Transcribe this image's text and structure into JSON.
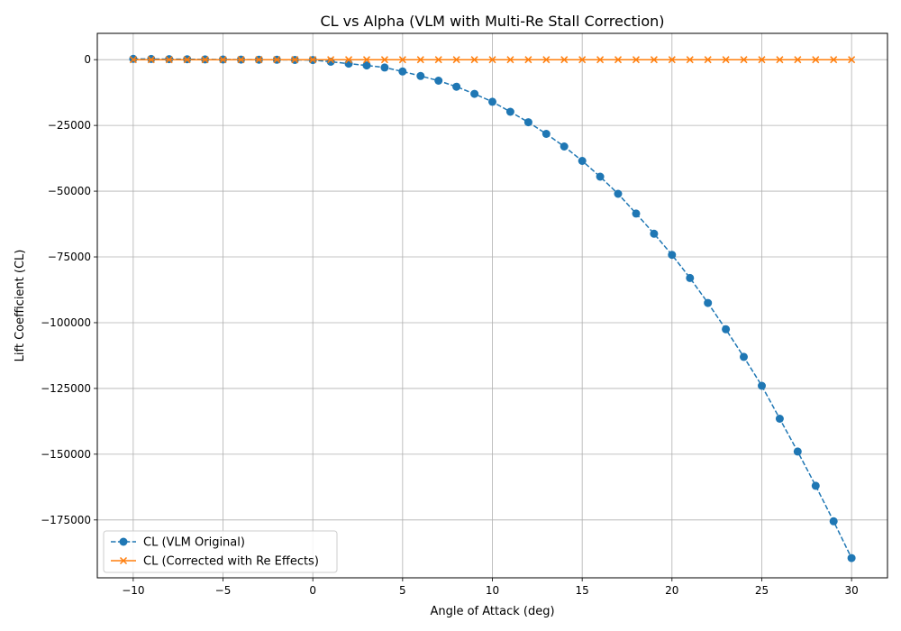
{
  "chart_data": {
    "type": "line",
    "title": "CL vs Alpha (VLM with Multi-Re Stall Correction)",
    "xlabel": "Angle of Attack (deg)",
    "ylabel": "Lift Coefficient (CL)",
    "xlim": [
      -12,
      32
    ],
    "ylim": [
      -197000,
      10000
    ],
    "xticks": [
      -10,
      -5,
      0,
      5,
      10,
      15,
      20,
      25,
      30
    ],
    "xtick_labels": [
      "−10",
      "−5",
      "0",
      "5",
      "10",
      "15",
      "20",
      "25",
      "30"
    ],
    "yticks": [
      0,
      -25000,
      -50000,
      -75000,
      -100000,
      -125000,
      -150000,
      -175000
    ],
    "ytick_labels": [
      "0",
      "−25000",
      "−50000",
      "−75000",
      "−100000",
      "−125000",
      "−150000",
      "−175000"
    ],
    "grid": true,
    "legend_position": "lower-left",
    "x": [
      -10,
      -9,
      -8,
      -7,
      -6,
      -5,
      -4,
      -3,
      -2,
      -1,
      0,
      1,
      2,
      3,
      4,
      5,
      6,
      7,
      8,
      9,
      10,
      11,
      12,
      13,
      14,
      15,
      16,
      17,
      18,
      19,
      20,
      21,
      22,
      23,
      24,
      25,
      26,
      27,
      28,
      29,
      30
    ],
    "series": [
      {
        "name": "CL (VLM Original)",
        "color": "#1f77b4",
        "linestyle": "dashed",
        "marker": "circle",
        "values": [
          300,
          250,
          200,
          150,
          100,
          60,
          30,
          0,
          -50,
          -100,
          -150,
          -800,
          -1500,
          -2200,
          -3000,
          -4500,
          -6200,
          -8000,
          -10300,
          -13000,
          -16000,
          -19800,
          -23800,
          -28200,
          -33000,
          -38500,
          -44500,
          -51000,
          -58500,
          -66200,
          -74200,
          -83000,
          -92500,
          -102500,
          -113000,
          -124000,
          -136500,
          -149000,
          -162000,
          -175500,
          -189500
        ]
      },
      {
        "name": "CL (Corrected with Re Effects)",
        "color": "#ff7f0e",
        "linestyle": "solid",
        "marker": "x",
        "values": [
          0,
          0,
          0,
          0,
          0,
          0,
          0,
          0,
          0,
          0,
          0,
          0,
          0,
          0,
          0,
          0,
          0,
          0,
          0,
          0,
          0,
          0,
          0,
          0,
          0,
          0,
          0,
          0,
          0,
          0,
          0,
          0,
          0,
          0,
          0,
          0,
          0,
          0,
          0,
          0,
          0
        ]
      }
    ]
  }
}
